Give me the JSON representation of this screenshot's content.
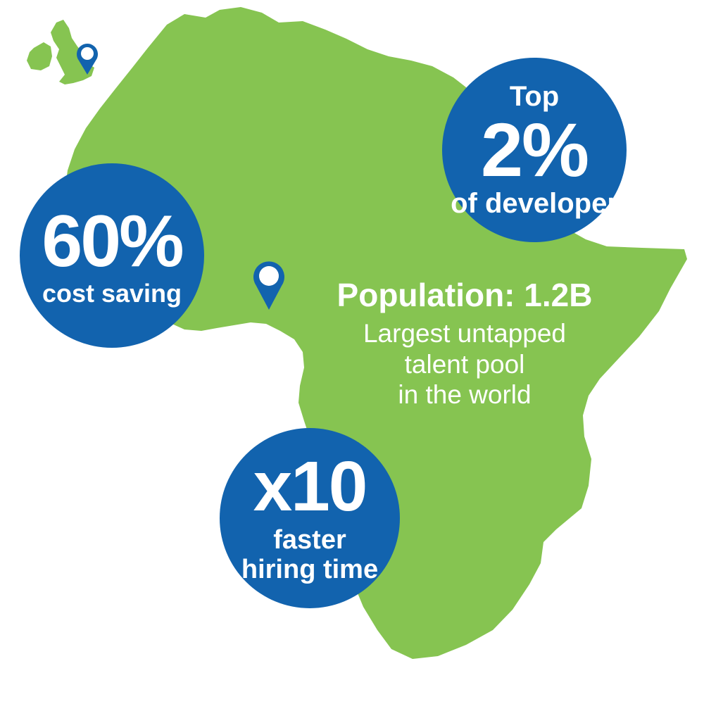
{
  "colors": {
    "land": "#86c451",
    "circle": "#1263ae",
    "pin": "#1263ae",
    "pin_inner": "#ffffff",
    "text": "#ffffff"
  },
  "regions": [
    {
      "name": "africa",
      "icon": "africa-map-shape"
    },
    {
      "name": "ireland",
      "icon": "ireland-map-shape"
    },
    {
      "name": "great-britain",
      "icon": "great-britain-map-shape"
    }
  ],
  "pins": [
    {
      "location": "United Kingdom",
      "icon": "map-pin-icon"
    },
    {
      "location": "Nigeria",
      "icon": "map-pin-icon"
    }
  ],
  "stats": {
    "top_developer": {
      "prefix": "Top",
      "value": "2%",
      "label": "of developer"
    },
    "cost_saving": {
      "value": "60%",
      "label": "cost saving"
    },
    "hiring_time": {
      "value": "x10",
      "label_line1": "faster",
      "label_line2": "hiring time"
    }
  },
  "population": {
    "title": "Population: 1.2B",
    "lines": [
      "Largest untapped",
      "talent pool",
      "in the world"
    ]
  }
}
